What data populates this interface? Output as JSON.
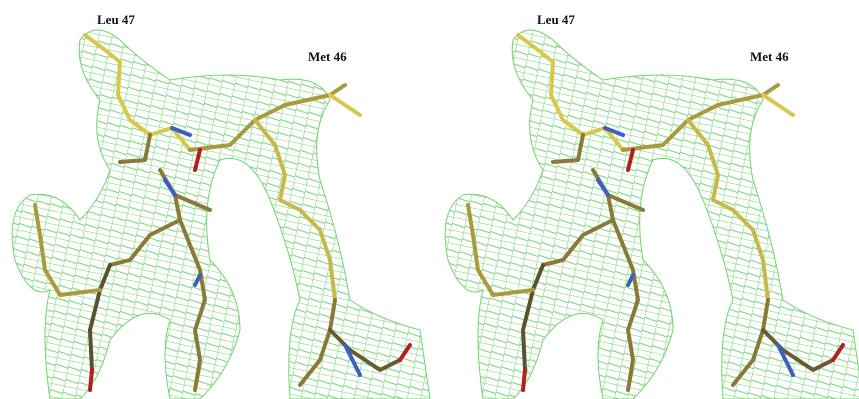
{
  "panels": [
    {
      "labels": [
        "Leu 47",
        "Met 46"
      ]
    },
    {
      "labels": [
        "Leu 47",
        "Met 46"
      ]
    }
  ]
}
